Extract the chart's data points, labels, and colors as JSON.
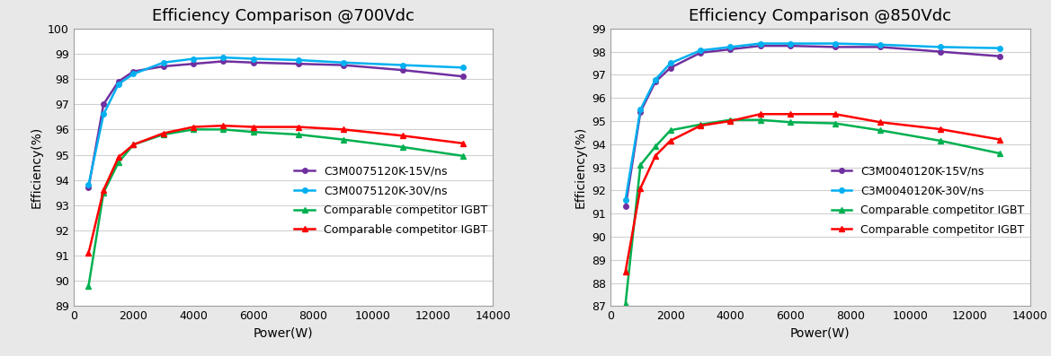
{
  "chart1": {
    "title": "Efficiency Comparison @700Vdc",
    "xlabel": "Power(W)",
    "ylabel": "Efficiency(%)",
    "ylim": [
      89,
      100
    ],
    "yticks": [
      89,
      90,
      91,
      92,
      93,
      94,
      95,
      96,
      97,
      98,
      99,
      100
    ],
    "xlim": [
      0,
      14000
    ],
    "xticks": [
      0,
      2000,
      4000,
      6000,
      8000,
      10000,
      12000,
      14000
    ],
    "series": [
      {
        "label": "C3M0075120K-15V/ns",
        "color": "#7030A0",
        "marker": "o",
        "x": [
          500,
          1000,
          1500,
          2000,
          3000,
          4000,
          5000,
          6000,
          7500,
          9000,
          11000,
          13000
        ],
        "y": [
          93.7,
          97.0,
          97.9,
          98.3,
          98.5,
          98.6,
          98.7,
          98.65,
          98.6,
          98.55,
          98.35,
          98.1
        ]
      },
      {
        "label": "C3M0075120K-30V/ns",
        "color": "#00B0F0",
        "marker": "o",
        "x": [
          500,
          1000,
          1500,
          2000,
          3000,
          4000,
          5000,
          6000,
          7500,
          9000,
          11000,
          13000
        ],
        "y": [
          93.8,
          96.6,
          97.8,
          98.2,
          98.65,
          98.8,
          98.85,
          98.8,
          98.75,
          98.65,
          98.55,
          98.45
        ]
      },
      {
        "label": "Comparable competitor IGBT",
        "color": "#00B050",
        "marker": "^",
        "x": [
          500,
          1000,
          1500,
          2000,
          3000,
          4000,
          5000,
          6000,
          7500,
          9000,
          11000,
          13000
        ],
        "y": [
          89.8,
          93.5,
          94.7,
          95.4,
          95.8,
          96.0,
          96.0,
          95.9,
          95.8,
          95.6,
          95.3,
          94.95
        ]
      },
      {
        "label": "Comparable competitor IGBT",
        "color": "#FF0000",
        "marker": "^",
        "x": [
          500,
          1000,
          1500,
          2000,
          3000,
          4000,
          5000,
          6000,
          7500,
          9000,
          11000,
          13000
        ],
        "y": [
          91.1,
          93.6,
          94.9,
          95.4,
          95.85,
          96.1,
          96.15,
          96.1,
          96.1,
          96.0,
          95.75,
          95.45
        ]
      }
    ]
  },
  "chart2": {
    "title": "Efficiency Comparison @850Vdc",
    "xlabel": "Power(W)",
    "ylabel": "Efficiency(%)",
    "ylim": [
      87,
      99
    ],
    "yticks": [
      87,
      88,
      89,
      90,
      91,
      92,
      93,
      94,
      95,
      96,
      97,
      98,
      99
    ],
    "xlim": [
      0,
      14000
    ],
    "xticks": [
      0,
      2000,
      4000,
      6000,
      8000,
      10000,
      12000,
      14000
    ],
    "series": [
      {
        "label": "C3M0040120K-15V/ns",
        "color": "#7030A0",
        "marker": "o",
        "x": [
          500,
          1000,
          1500,
          2000,
          3000,
          4000,
          5000,
          6000,
          7500,
          9000,
          11000,
          13000
        ],
        "y": [
          91.3,
          95.4,
          96.7,
          97.3,
          97.95,
          98.1,
          98.25,
          98.25,
          98.2,
          98.2,
          98.0,
          97.8
        ]
      },
      {
        "label": "C3M0040120K-30V/ns",
        "color": "#00B0F0",
        "marker": "o",
        "x": [
          500,
          1000,
          1500,
          2000,
          3000,
          4000,
          5000,
          6000,
          7500,
          9000,
          11000,
          13000
        ],
        "y": [
          91.6,
          95.5,
          96.8,
          97.5,
          98.05,
          98.2,
          98.35,
          98.35,
          98.35,
          98.3,
          98.2,
          98.15
        ]
      },
      {
        "label": "Comparable competitor IGBT",
        "color": "#00B050",
        "marker": "^",
        "x": [
          500,
          1000,
          1500,
          2000,
          3000,
          4000,
          5000,
          6000,
          7500,
          9000,
          11000,
          13000
        ],
        "y": [
          87.1,
          93.1,
          93.9,
          94.6,
          94.85,
          95.05,
          95.05,
          94.95,
          94.9,
          94.6,
          94.15,
          93.6
        ]
      },
      {
        "label": "Comparable competitor IGBT",
        "color": "#FF0000",
        "marker": "^",
        "x": [
          500,
          1000,
          1500,
          2000,
          3000,
          4000,
          5000,
          6000,
          7500,
          9000,
          11000,
          13000
        ],
        "y": [
          88.5,
          92.1,
          93.5,
          94.15,
          94.8,
          95.0,
          95.3,
          95.3,
          95.3,
          94.95,
          94.65,
          94.2
        ]
      }
    ]
  },
  "fig_bg": "#E8E8E8",
  "ax_bg": "#FFFFFF",
  "grid_color": "#D0D0D0",
  "border_color": "#A0A0A0",
  "title_fontsize": 13,
  "label_fontsize": 10,
  "tick_fontsize": 9,
  "legend_fontsize": 9
}
